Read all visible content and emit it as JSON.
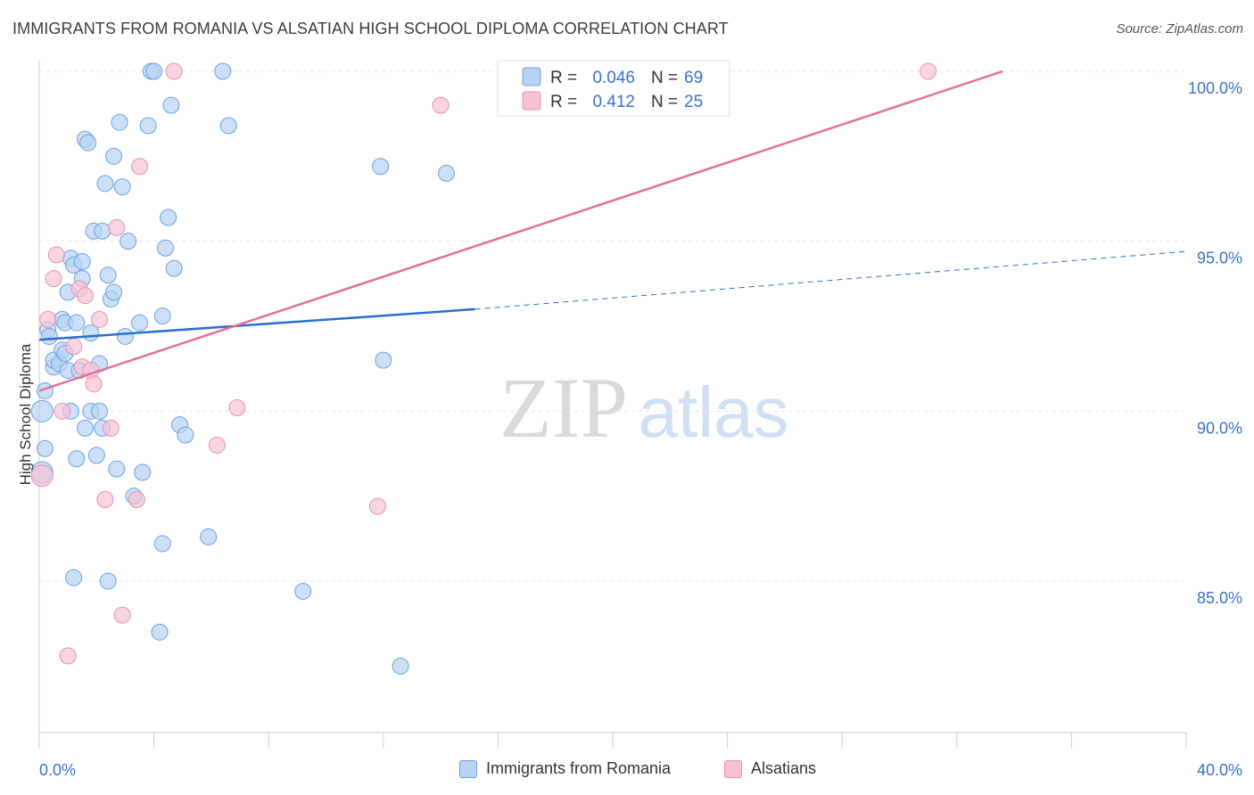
{
  "title": "IMMIGRANTS FROM ROMANIA VS ALSATIAN HIGH SCHOOL DIPLOMA CORRELATION CHART",
  "source": "Source: ZipAtlas.com",
  "watermark": {
    "zip": "ZIP",
    "atlas": "atlas"
  },
  "colors": {
    "blue": "#6aa0e0",
    "blue_fill": "#b8d3f3",
    "blue_line": "#2a6fd0",
    "pink": "#e890b0",
    "pink_fill": "#f6c3d5",
    "pink_line": "#e07099",
    "axis_text": "#3a72c8",
    "grid": "#e4e4e4"
  },
  "legend_top": [
    {
      "r_label": "R =",
      "r_value": "0.046",
      "n_label": "N =",
      "n_value": "69"
    },
    {
      "r_label": "R =",
      "r_value": "0.412",
      "n_label": "N =",
      "n_value": "25"
    }
  ],
  "legend_bottom": [
    "Immigrants from Romania",
    "Alsatians"
  ],
  "chart_data": {
    "type": "scatter",
    "title": "IMMIGRANTS FROM ROMANIA VS ALSATIAN HIGH SCHOOL DIPLOMA CORRELATION CHART",
    "xlabel": "",
    "ylabel": "High School Diploma",
    "xlim": [
      0,
      40
    ],
    "ylim": [
      80,
      100.5
    ],
    "x_tick_labels": [
      "0.0%",
      "40.0%"
    ],
    "y_tick_labels": [
      "85.0%",
      "90.0%",
      "95.0%",
      "100.0%"
    ],
    "y_ticks": [
      85,
      90,
      95,
      100
    ],
    "grid": true,
    "series": [
      {
        "name": "Immigrants from Romania",
        "r": 0.046,
        "n": 69,
        "trend": {
          "x0": 0,
          "y0": 92.1,
          "x1": 15.2,
          "y1": 93.0,
          "x_dash_end": 40,
          "y_dash_end": 94.7
        },
        "points": [
          [
            0.1,
            90.0
          ],
          [
            0.2,
            90.6
          ],
          [
            0.2,
            88.9
          ],
          [
            0.1,
            88.2
          ],
          [
            0.3,
            92.4
          ],
          [
            0.35,
            92.2
          ],
          [
            0.5,
            91.3
          ],
          [
            0.5,
            91.5
          ],
          [
            0.7,
            91.4
          ],
          [
            0.8,
            92.7
          ],
          [
            0.8,
            91.8
          ],
          [
            0.9,
            92.6
          ],
          [
            0.9,
            91.7
          ],
          [
            1.0,
            93.5
          ],
          [
            1.0,
            91.2
          ],
          [
            1.1,
            94.5
          ],
          [
            1.1,
            90.0
          ],
          [
            1.2,
            94.3
          ],
          [
            1.3,
            92.6
          ],
          [
            1.3,
            88.6
          ],
          [
            1.4,
            91.2
          ],
          [
            1.5,
            94.4
          ],
          [
            1.5,
            93.9
          ],
          [
            1.6,
            89.5
          ],
          [
            1.6,
            98.0
          ],
          [
            1.7,
            97.9
          ],
          [
            1.8,
            92.3
          ],
          [
            1.8,
            90.0
          ],
          [
            1.9,
            95.3
          ],
          [
            2.0,
            88.7
          ],
          [
            2.1,
            91.4
          ],
          [
            2.1,
            90.0
          ],
          [
            2.2,
            95.3
          ],
          [
            2.2,
            89.5
          ],
          [
            2.3,
            96.7
          ],
          [
            2.4,
            94.0
          ],
          [
            2.5,
            93.3
          ],
          [
            2.6,
            93.5
          ],
          [
            2.6,
            97.5
          ],
          [
            2.7,
            88.3
          ],
          [
            2.8,
            98.5
          ],
          [
            2.9,
            96.6
          ],
          [
            3.0,
            92.2
          ],
          [
            3.1,
            95.0
          ],
          [
            3.3,
            87.5
          ],
          [
            3.5,
            92.6
          ],
          [
            3.6,
            88.2
          ],
          [
            3.8,
            98.4
          ],
          [
            3.9,
            100.0
          ],
          [
            4.0,
            100.0
          ],
          [
            4.3,
            92.8
          ],
          [
            4.4,
            94.8
          ],
          [
            4.5,
            95.7
          ],
          [
            4.6,
            99.0
          ],
          [
            4.7,
            94.2
          ],
          [
            4.9,
            89.6
          ],
          [
            5.1,
            89.3
          ],
          [
            6.4,
            100.0
          ],
          [
            6.6,
            98.4
          ],
          [
            11.9,
            97.2
          ],
          [
            12.0,
            91.5
          ],
          [
            14.2,
            97.0
          ],
          [
            1.2,
            85.1
          ],
          [
            2.4,
            85.0
          ],
          [
            4.3,
            86.1
          ],
          [
            5.9,
            86.3
          ],
          [
            9.2,
            84.7
          ],
          [
            4.2,
            83.5
          ],
          [
            12.6,
            82.5
          ]
        ]
      },
      {
        "name": "Alsatians",
        "r": 0.412,
        "n": 25,
        "trend": {
          "x0": 0,
          "y0": 90.6,
          "x1": 33.6,
          "y1": 100.0
        },
        "points": [
          [
            0.1,
            88.1
          ],
          [
            0.3,
            92.7
          ],
          [
            0.5,
            93.9
          ],
          [
            0.6,
            94.6
          ],
          [
            0.8,
            90.0
          ],
          [
            1.2,
            91.9
          ],
          [
            1.4,
            93.6
          ],
          [
            1.5,
            91.3
          ],
          [
            1.6,
            93.4
          ],
          [
            1.8,
            91.2
          ],
          [
            1.9,
            90.8
          ],
          [
            2.1,
            92.7
          ],
          [
            2.3,
            87.4
          ],
          [
            2.5,
            89.5
          ],
          [
            2.7,
            95.4
          ],
          [
            2.9,
            84.0
          ],
          [
            3.4,
            87.4
          ],
          [
            3.5,
            97.2
          ],
          [
            4.7,
            100.0
          ],
          [
            6.2,
            89.0
          ],
          [
            6.9,
            90.1
          ],
          [
            11.8,
            87.2
          ],
          [
            14.0,
            99.0
          ],
          [
            31.0,
            100.0
          ],
          [
            1.0,
            82.8
          ]
        ]
      }
    ]
  }
}
